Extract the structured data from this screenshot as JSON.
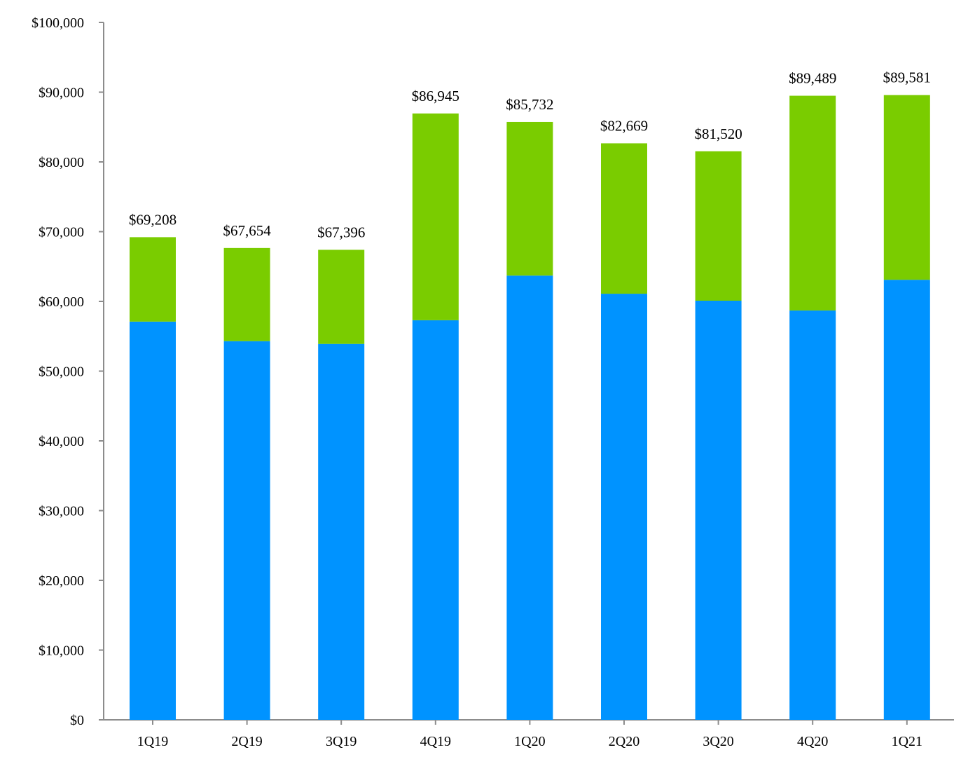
{
  "chart_data": {
    "type": "bar",
    "stacked": true,
    "categories": [
      "1Q19",
      "2Q19",
      "3Q19",
      "4Q19",
      "1Q20",
      "2Q20",
      "3Q20",
      "4Q20",
      "1Q21"
    ],
    "series": [
      {
        "color": "#0093ff",
        "values": [
          57100,
          54300,
          53900,
          57300,
          63700,
          61100,
          60100,
          58700,
          63100
        ]
      },
      {
        "color": "#7acc00",
        "values": [
          12108,
          13354,
          13496,
          29645,
          22032,
          21569,
          21420,
          30789,
          26481
        ]
      }
    ],
    "totals": [
      69208,
      67654,
      67396,
      86945,
      85732,
      82669,
      81520,
      89489,
      89581
    ],
    "total_labels": [
      "$69,208",
      "$67,654",
      "$67,396",
      "$86,945",
      "$85,732",
      "$82,669",
      "$81,520",
      "$89,489",
      "$89,581"
    ],
    "y_ticks": [
      0,
      10000,
      20000,
      30000,
      40000,
      50000,
      60000,
      70000,
      80000,
      90000,
      100000
    ],
    "y_tick_labels": [
      "$0",
      "$10,000",
      "$20,000",
      "$30,000",
      "$40,000",
      "$50,000",
      "$60,000",
      "$70,000",
      "$80,000",
      "$90,000",
      "$100,000"
    ],
    "ylim": [
      0,
      100000
    ],
    "grid": false,
    "legend": "none"
  }
}
